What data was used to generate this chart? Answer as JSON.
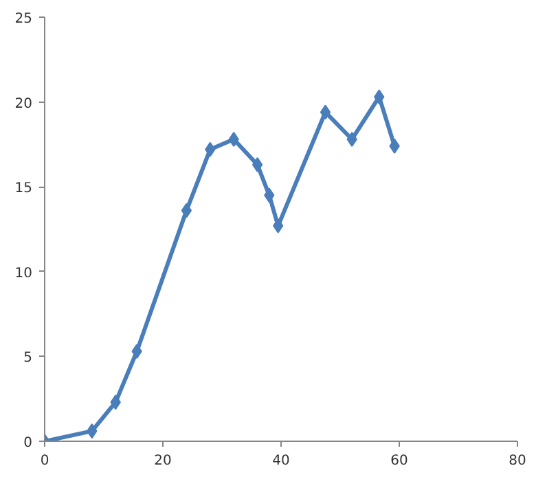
{
  "chart_data": {
    "type": "line",
    "x": [
      0,
      8,
      12,
      15.6,
      24,
      28,
      32,
      36,
      38,
      39.5,
      47.5,
      52,
      56.6,
      59.2
    ],
    "series": [
      {
        "color": "#4a7ebb",
        "values": [
          0,
          0.6,
          2.3,
          5.3,
          13.6,
          17.2,
          17.8,
          16.3,
          14.5,
          12.7,
          19.4,
          17.8,
          20.3,
          17.4
        ]
      }
    ],
    "xlim": [
      0,
      80
    ],
    "xticks": [
      0,
      20,
      40,
      60,
      80
    ],
    "ylim": [
      0,
      25
    ],
    "yticks": [
      0,
      5,
      10,
      15,
      20,
      25
    ],
    "grid": false,
    "marker": "diamond",
    "line_style": "solid"
  }
}
